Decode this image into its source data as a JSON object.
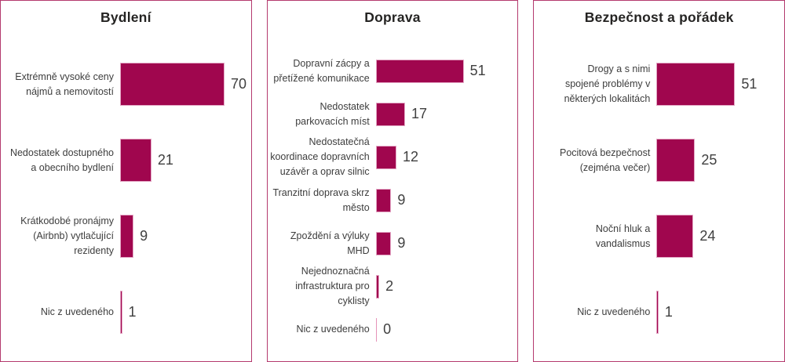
{
  "colors": {
    "bar_fill": "#a0064e",
    "bar_outline": "#e3a6c4",
    "zero_bar": "#e593b8",
    "panel_border": "#b43a6e",
    "title_text": "#252423",
    "label_text": "#3d3d3d",
    "value_text": "#404040",
    "background": "#ffffff"
  },
  "chart_data": [
    {
      "type": "bar",
      "orientation": "horizontal",
      "title": "Bydlení",
      "categories": [
        "Extrémně vysoké ceny\nnájmů a nemovitostí",
        "Nedostatek dostupného\na obecního bydlení",
        "Krátkodobé pronájmy\n(Airbnb) vytlačující\nrezidenty",
        "Nic z uvedeného"
      ],
      "values": [
        70,
        21,
        9,
        1
      ],
      "xlabel": "",
      "ylabel": "",
      "xlim": [
        0,
        74
      ],
      "grid": false,
      "legend": "none",
      "data_labels": "end-of-bar"
    },
    {
      "type": "bar",
      "orientation": "horizontal",
      "title": "Doprava",
      "categories": [
        "Dopravní zácpy a\npřetížené komunikace",
        "Nedostatek\nparkovacích míst",
        "Nedostatečná\nkoordinace dopravních\nuzávěr a oprav silnic",
        "Tranzitní doprava skrz\nměsto",
        "Zpoždění a výluky\nMHD",
        "Nejednoznačná\ninfrastruktura pro\ncyklisty",
        "Nic z uvedeného"
      ],
      "values": [
        51,
        17,
        12,
        9,
        9,
        2,
        0
      ],
      "xlabel": "",
      "ylabel": "",
      "xlim": [
        0,
        55
      ],
      "grid": false,
      "legend": "none",
      "data_labels": "end-of-bar"
    },
    {
      "type": "bar",
      "orientation": "horizontal",
      "title": "Bezpečnost a pořádek",
      "categories": [
        "Drogy a s nimi\nspojené problémy v\nněkterých lokalitách",
        "Pocitová bezpečnost\n(zejména večer)",
        "Noční hluk a\nvandalismus",
        "Nic z uvedeného"
      ],
      "values": [
        51,
        25,
        24,
        1
      ],
      "xlabel": "",
      "ylabel": "",
      "xlim": [
        0,
        55
      ],
      "grid": false,
      "legend": "none",
      "data_labels": "end-of-bar"
    }
  ]
}
